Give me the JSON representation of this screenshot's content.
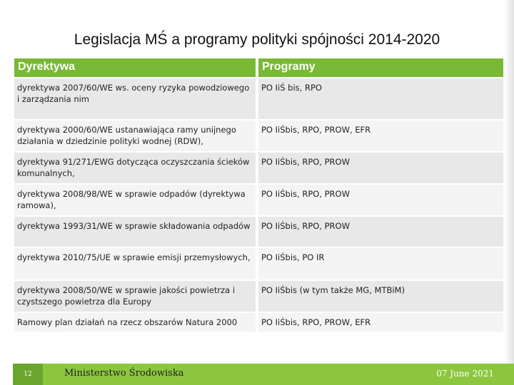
{
  "header": {
    "title": "Legislacja MŚ a programy polityki spójności 2014-2020"
  },
  "table": {
    "columns": [
      "Dyrektywa",
      "Programy"
    ],
    "rows": [
      [
        "dyrektywa 2007/60/WE ws. oceny ryzyka powodziowego i zarządzania nim",
        "PO IiŚ bis, RPO"
      ],
      [
        "dyrektywa 2000/60/WE ustanawiająca ramy unijnego działania w dziedzinie polityki wodnej (RDW),",
        "PO IiŚbis, RPO, PROW, EFR"
      ],
      [
        "dyrektywa 91/271/EWG dotycząca oczyszczania ścieków komunalnych,",
        "PO IiŚbis, RPO, PROW"
      ],
      [
        "dyrektywa 2008/98/WE w sprawie odpadów (dyrektywa ramowa),",
        "PO IiŚbis, RPO, PROW"
      ],
      [
        "dyrektywa 1993/31/WE w sprawie składowania odpadów",
        "PO IiŚbis, RPO, PROW"
      ],
      [
        "dyrektywa 2010/75/UE w sprawie emisji przemysłowych,",
        "PO IiŚbis, PO IR"
      ],
      [
        "dyrektywa 2008/50/WE w sprawie jakości powietrza i czystszego powietrza dla Europy",
        "PO IiŚbis (w tym także MG, MTBiM)"
      ],
      [
        "Ramowy plan działań na rzecz obszarów Natura 2000",
        "PO IiŚbis, RPO, PROW, EFR"
      ]
    ]
  },
  "footer": {
    "page": "12",
    "organization": "Ministerstwo Środowiska",
    "date": "07 June 2021"
  }
}
